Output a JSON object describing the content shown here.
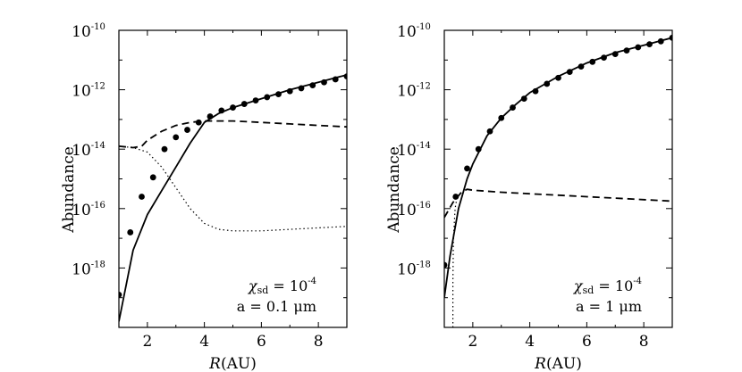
{
  "chart_data": [
    {
      "type": "line",
      "panel": "left",
      "xlabel": "R(AU)",
      "ylabel": "Abundance",
      "xlim": [
        1,
        9
      ],
      "ylim_log10": [
        -20,
        -10
      ],
      "xticks": [
        2,
        4,
        6,
        8
      ],
      "yticks_log10": [
        -10,
        -12,
        -14,
        -16,
        -18
      ],
      "ytick_labels": [
        "10^-10",
        "10^-12",
        "10^-14",
        "10^-16",
        "10^-18"
      ],
      "annotation": {
        "chi": "χsd = 10^-4",
        "size": "a = 0.1 μm"
      },
      "series": [
        {
          "name": "solid",
          "style": "solid",
          "x": [
            1.0,
            1.5,
            2.0,
            2.5,
            3.0,
            3.5,
            4.0,
            4.5,
            5.0,
            6.0,
            7.0,
            8.0,
            9.0
          ],
          "log10_y": [
            -19.8,
            -17.4,
            -16.2,
            -15.4,
            -14.6,
            -13.8,
            -13.1,
            -12.8,
            -12.6,
            -12.3,
            -12.0,
            -11.75,
            -11.5
          ]
        },
        {
          "name": "dashed",
          "style": "dashed",
          "x": [
            1.0,
            1.5,
            1.8,
            2.0,
            2.5,
            3.0,
            3.5,
            4.0,
            5.0,
            6.0,
            7.0,
            8.0,
            9.0
          ],
          "log10_y": [
            -13.9,
            -13.95,
            -13.9,
            -13.7,
            -13.4,
            -13.2,
            -13.1,
            -13.05,
            -13.05,
            -13.1,
            -13.15,
            -13.2,
            -13.25
          ]
        },
        {
          "name": "dotted",
          "style": "dotted",
          "x": [
            1.0,
            1.5,
            2.0,
            2.5,
            3.0,
            3.5,
            4.0,
            4.5,
            5.0,
            6.0,
            7.0,
            8.0,
            9.0
          ],
          "log10_y": [
            -13.9,
            -13.95,
            -14.1,
            -14.6,
            -15.3,
            -16.0,
            -16.5,
            -16.7,
            -16.75,
            -16.75,
            -16.7,
            -16.65,
            -16.6
          ]
        },
        {
          "name": "dots",
          "style": "markers",
          "x": [
            1.0,
            1.4,
            1.8,
            2.2,
            2.6,
            3.0,
            3.4,
            3.8,
            4.2,
            4.6,
            5.0,
            5.4,
            5.8,
            6.2,
            6.6,
            7.0,
            7.4,
            7.8,
            8.2,
            8.6,
            9.0
          ],
          "log10_y": [
            -18.9,
            -16.8,
            -15.6,
            -14.95,
            -14.0,
            -13.6,
            -13.35,
            -13.1,
            -12.9,
            -12.7,
            -12.6,
            -12.48,
            -12.36,
            -12.25,
            -12.15,
            -12.05,
            -11.95,
            -11.85,
            -11.75,
            -11.65,
            -11.55
          ]
        }
      ]
    },
    {
      "type": "line",
      "panel": "right",
      "xlabel": "R(AU)",
      "ylabel": "Abundance",
      "xlim": [
        1,
        9
      ],
      "ylim_log10": [
        -20,
        -10
      ],
      "xticks": [
        2,
        4,
        6,
        8
      ],
      "yticks_log10": [
        -10,
        -12,
        -14,
        -16,
        -18
      ],
      "ytick_labels": [
        "10^-10",
        "10^-12",
        "10^-14",
        "10^-16",
        "10^-18"
      ],
      "annotation": {
        "chi": "χsd = 10^-4",
        "size": "a = 1 μm"
      },
      "series": [
        {
          "name": "solid",
          "style": "solid",
          "x": [
            1.0,
            1.2,
            1.5,
            1.8,
            2.0,
            2.5,
            3.0,
            3.5,
            4.0,
            5.0,
            6.0,
            7.0,
            8.0,
            9.0
          ],
          "log10_y": [
            -19.0,
            -17.6,
            -16.0,
            -15.0,
            -14.5,
            -13.55,
            -12.95,
            -12.5,
            -12.1,
            -11.55,
            -11.1,
            -10.75,
            -10.5,
            -10.25
          ]
        },
        {
          "name": "dashed",
          "style": "dashed",
          "x": [
            1.0,
            1.3,
            1.6,
            1.8,
            2.0,
            3.0,
            4.0,
            5.0,
            6.0,
            7.0,
            8.0,
            9.0
          ],
          "log10_y": [
            -16.3,
            -15.8,
            -15.45,
            -15.35,
            -15.38,
            -15.45,
            -15.5,
            -15.55,
            -15.6,
            -15.65,
            -15.7,
            -15.75
          ]
        },
        {
          "name": "dotted",
          "style": "dotted",
          "x": [
            1.3,
            1.3,
            1.32,
            1.38,
            1.45
          ],
          "log10_y": [
            -20.0,
            -18.5,
            -17.0,
            -16.0,
            -15.6
          ]
        },
        {
          "name": "dots",
          "style": "markers",
          "x": [
            1.0,
            1.4,
            1.8,
            2.2,
            2.6,
            3.0,
            3.4,
            3.8,
            4.2,
            4.6,
            5.0,
            5.4,
            5.8,
            6.2,
            6.6,
            7.0,
            7.4,
            7.8,
            8.2,
            8.6,
            9.0
          ],
          "log10_y": [
            -17.9,
            -15.6,
            -14.65,
            -14.0,
            -13.4,
            -12.95,
            -12.6,
            -12.3,
            -12.05,
            -11.8,
            -11.6,
            -11.4,
            -11.22,
            -11.06,
            -10.92,
            -10.8,
            -10.68,
            -10.57,
            -10.47,
            -10.37,
            -10.25
          ]
        }
      ]
    }
  ]
}
